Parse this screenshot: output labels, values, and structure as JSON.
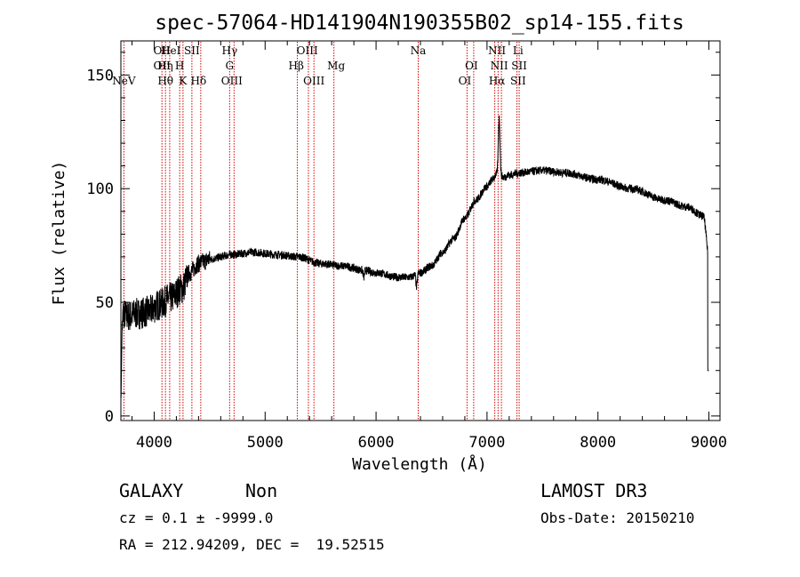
{
  "chart_data": {
    "type": "line",
    "title": "spec-57064-HD141904N190355B02_sp14-155.fits",
    "xlabel": "Wavelength (Å)",
    "ylabel": "Flux (relative)",
    "xlim": [
      3700,
      9100
    ],
    "ylim": [
      -2,
      165
    ],
    "x_ticks": [
      4000,
      5000,
      6000,
      7000,
      8000,
      9000
    ],
    "x_tick_labels": [
      "4000",
      "5000",
      "6000",
      "7000",
      "8000",
      "9000"
    ],
    "y_ticks": [
      0,
      50,
      100,
      150
    ],
    "y_tick_labels": [
      "0",
      "50",
      "100",
      "150"
    ],
    "grid": false,
    "spectrum_knots": {
      "x": [
        3700,
        3720,
        3760,
        3850,
        3950,
        4050,
        4150,
        4250,
        4320,
        4400,
        4450,
        4500,
        4700,
        4900,
        5100,
        5300,
        5500,
        5700,
        5900,
        6000,
        6200,
        6300,
        6400,
        6500,
        6600,
        6700,
        6800,
        6900,
        7000,
        7050,
        7080,
        7100,
        7120,
        7150,
        7200,
        7300,
        7500,
        7700,
        8000,
        8300,
        8600,
        8800,
        8950,
        9000
      ],
      "y": [
        5,
        45,
        44,
        45,
        46,
        49,
        52,
        56,
        63,
        67,
        68,
        69,
        71,
        72,
        71,
        70,
        67,
        66,
        64,
        63,
        61,
        61,
        63,
        66,
        72,
        78,
        87,
        95,
        101,
        104,
        106,
        108,
        106,
        105,
        106,
        107,
        108,
        107,
        104,
        100,
        95,
        92,
        88,
        70
      ]
    },
    "emission_features": [
      {
        "x": 7110,
        "amplitude": 24,
        "width": 10
      }
    ],
    "absorption_features": [
      {
        "x": 6365,
        "depth": 6,
        "width": 8
      },
      {
        "x": 5890,
        "depth": 3,
        "width": 8
      }
    ],
    "series": [
      {
        "name": "spectrum",
        "color": "#000000"
      }
    ],
    "line_markers": [
      {
        "x": 3727,
        "label": "NeV",
        "row": 2
      },
      {
        "x": 4070,
        "label": "OII",
        "row": 0
      },
      {
        "x": 4070,
        "label": "OII",
        "row": 1
      },
      {
        "x": 4100,
        "label": "Hη",
        "row": 1
      },
      {
        "x": 4102,
        "label": "Hθ",
        "row": 2
      },
      {
        "x": 4150,
        "label": "HeI",
        "row": 0
      },
      {
        "x": 4230,
        "label": "H",
        "row": 1
      },
      {
        "x": 4260,
        "label": "K",
        "row": 2
      },
      {
        "x": 4340,
        "label": "SII",
        "row": 0
      },
      {
        "x": 4400,
        "label": "Hδ",
        "row": 2
      },
      {
        "x": 4680,
        "label": "Hγ",
        "row": 0
      },
      {
        "x": 4680,
        "label": "G",
        "row": 1
      },
      {
        "x": 4700,
        "label": "OIII",
        "row": 2
      },
      {
        "x": 5280,
        "label": "Hβ",
        "row": 1
      },
      {
        "x": 5380,
        "label": "OIII",
        "row": 0
      },
      {
        "x": 5440,
        "label": "OIII",
        "row": 2
      },
      {
        "x": 5640,
        "label": "Mg",
        "row": 1
      },
      {
        "x": 6380,
        "label": "Na",
        "row": 0
      },
      {
        "x": 6860,
        "label": "OI",
        "row": 1
      },
      {
        "x": 6800,
        "label": "OI",
        "row": 2
      },
      {
        "x": 7090,
        "label": "NII",
        "row": 0
      },
      {
        "x": 7110,
        "label": "NII",
        "row": 1
      },
      {
        "x": 7090,
        "label": "Hα",
        "row": 2
      },
      {
        "x": 7280,
        "label": "Li",
        "row": 0
      },
      {
        "x": 7290,
        "label": "SII",
        "row": 1
      },
      {
        "x": 7280,
        "label": "SII",
        "row": 2
      }
    ],
    "marker_positions": [
      3727,
      4070,
      4102,
      4140,
      4230,
      4260,
      4340,
      4420,
      4680,
      4720,
      5290,
      5390,
      5440,
      5620,
      6380,
      6820,
      6880,
      7070,
      7100,
      7130,
      7270,
      7290
    ],
    "marker_color": "#cc0000"
  },
  "info": {
    "object_class": "GALAXY",
    "subclass": "Non",
    "survey": "LAMOST DR3",
    "cz_line": "cz = 0.1 ± -9999.0",
    "obs_date_line": "Obs-Date: 20150210",
    "coords_line": "RA = 212.94209, DEC =  19.52515"
  }
}
